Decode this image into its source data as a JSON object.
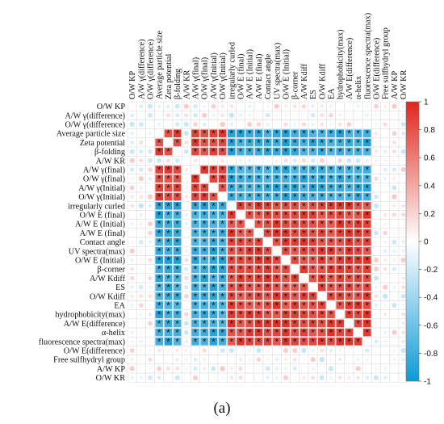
{
  "caption": "(a)",
  "chart_data": {
    "type": "heatmap",
    "variables": [
      "O/W KP",
      "A/W γ(difference)",
      "O/W γ(difference)",
      "Average particle size",
      "Zeta potential",
      "β-folding",
      "A/W KR",
      "A/W γ(final)",
      "O/W γ(final)",
      "A/W γ(Initial)",
      "O/W γ(Initial)",
      "irregularly curled",
      "O/W E (final)",
      "A/W E (Initial)",
      "A/W E (final)",
      "Contact angle",
      "UV spectra(max)",
      "O/W E (Initial)",
      "β-corner",
      "A/W Kdiff",
      "ES",
      "O/W Kdiff",
      "EA",
      "hydrophobicity(max)",
      "A/W E(difference)",
      "α-helix",
      "fluorescence spectra(max)",
      "O/W E(difference)",
      "Free sulfhydryl group",
      "A/W KP",
      "O/W KR"
    ],
    "groups": {
      "A": [
        3,
        4,
        5
      ],
      "B": [
        7,
        8,
        9,
        10
      ],
      "C": [
        11,
        12,
        13,
        14,
        15,
        16,
        17,
        18,
        19,
        20,
        21,
        22,
        23,
        24,
        25,
        26
      ]
    },
    "colorbar": {
      "ticks": [
        1,
        0.8,
        0.6,
        0.4,
        0.2,
        0,
        -0.2,
        -0.4,
        -0.6,
        -0.8,
        -1
      ],
      "colors": {
        "neg": "#0d9ad6",
        "zero": "#ffffff",
        "pos": "#e0261c"
      }
    },
    "significance_marker": "*"
  }
}
